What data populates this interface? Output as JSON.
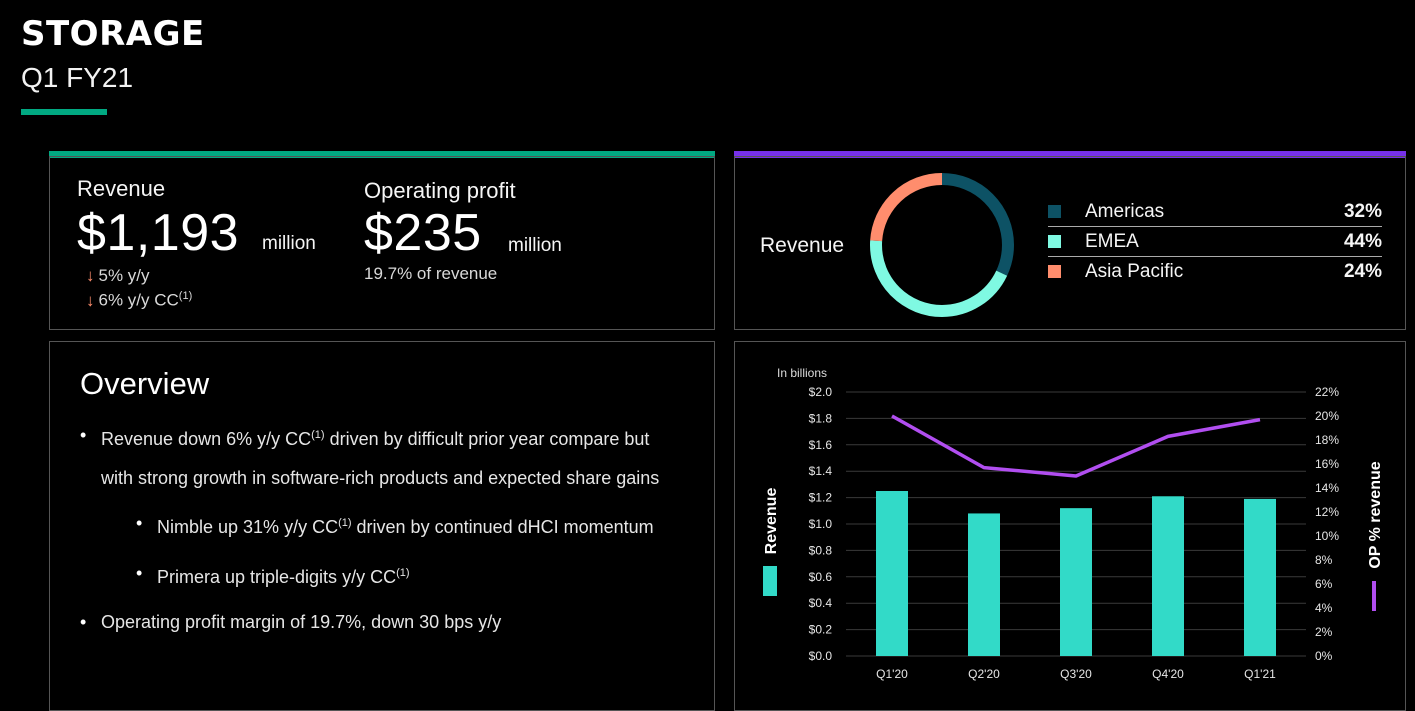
{
  "header": {
    "title": "STORAGE",
    "subtitle": "Q1 FY21"
  },
  "kpis": {
    "revenue": {
      "label": "Revenue",
      "value": "$1,193",
      "unit": "million",
      "change_1": "5% y/y",
      "change_2": "6% y/y CC",
      "change_2_sup": "(1)"
    },
    "operating_profit": {
      "label": "Operating profit",
      "value": "$235",
      "unit": "million",
      "note": "19.7% of revenue"
    }
  },
  "overview": {
    "title": "Overview",
    "bullet1_a": "Revenue down 6% y/y CC",
    "bullet1_sup": "(1)",
    "bullet1_b": " driven by difficult prior year compare but",
    "bullet1_line2": "with strong growth in software-rich products and expected share gains",
    "sub1_a": "Nimble up 31% y/y CC",
    "sub1_sup": "(1)",
    "sub1_b": " driven by continued dHCI momentum",
    "sub2_a": "Primera up triple-digits y/y CC",
    "sub2_sup": "(1)",
    "bullet2": "Operating profit margin of 19.7%, down 30 bps y/y"
  },
  "colors": {
    "accent_green": "#01a982",
    "accent_purple": "#7630ea",
    "americas": "#0d5265",
    "emea": "#7ff9e2",
    "asia_pacific": "#ff8d6d",
    "bar": "#32dac8",
    "line": "#b14ef0"
  },
  "revenue_mix": {
    "label": "Revenue",
    "segments": [
      {
        "name": "Americas",
        "percent": "32%",
        "value": 32,
        "color": "#0d5265"
      },
      {
        "name": "EMEA",
        "percent": "44%",
        "value": 44,
        "color": "#7ff9e2"
      },
      {
        "name": "Asia Pacific",
        "percent": "24%",
        "value": 24,
        "color": "#ff8d6d"
      }
    ]
  },
  "chart_data": {
    "type": "bar",
    "units_note": "In billions",
    "categories": [
      "Q1'20",
      "Q2'20",
      "Q3'20",
      "Q4'20",
      "Q1'21"
    ],
    "series": [
      {
        "name": "Revenue",
        "type": "bar",
        "axis": "left",
        "values": [
          1.25,
          1.08,
          1.12,
          1.21,
          1.19
        ]
      },
      {
        "name": "OP % revenue",
        "type": "line",
        "axis": "right",
        "values": [
          20.0,
          15.7,
          15.0,
          18.3,
          19.7
        ]
      }
    ],
    "ylim_left": [
      0,
      2.0
    ],
    "ylim_right": [
      0,
      22
    ],
    "left_ticks": [
      "$0.0",
      "$0.2",
      "$0.4",
      "$0.6",
      "$0.8",
      "$1.0",
      "$1.2",
      "$1.4",
      "$1.6",
      "$1.8",
      "$2.0"
    ],
    "right_ticks": [
      "0%",
      "2%",
      "4%",
      "6%",
      "8%",
      "10%",
      "12%",
      "14%",
      "16%",
      "18%",
      "20%",
      "22%"
    ],
    "ylabel_left": "Revenue",
    "ylabel_right": "OP % revenue"
  }
}
